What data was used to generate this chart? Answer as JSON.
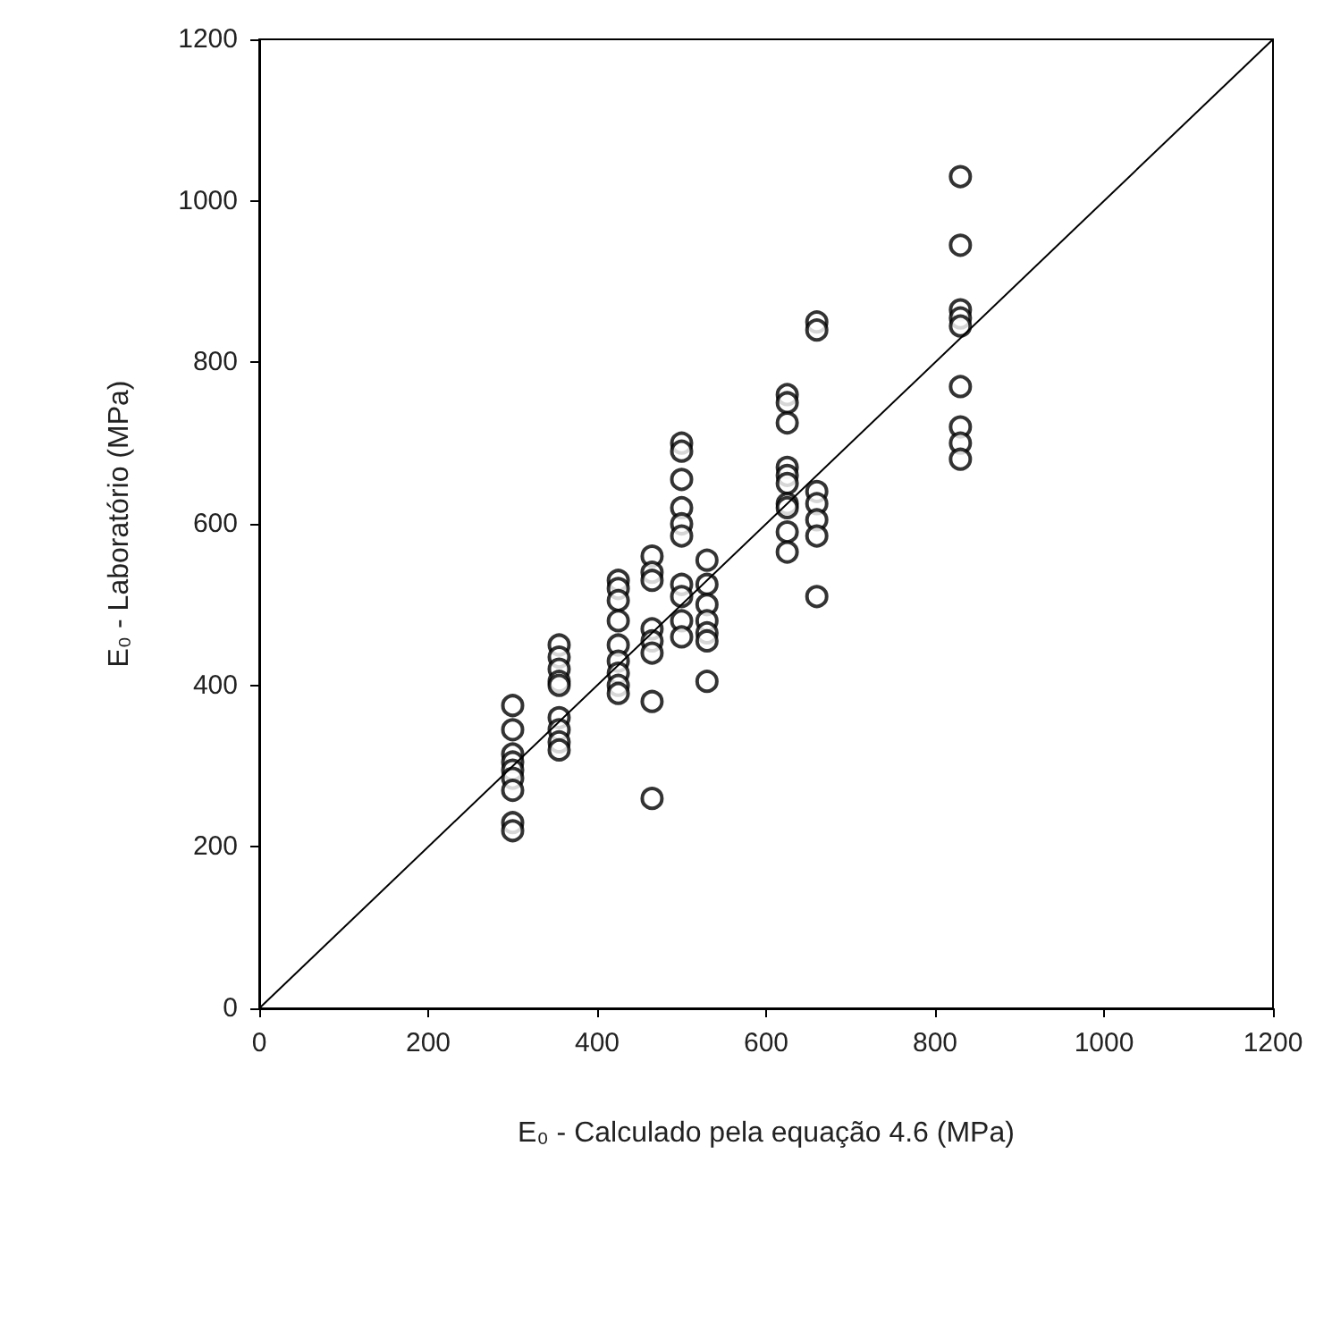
{
  "chart_data": {
    "type": "scatter",
    "xlabel": "E₀ - Calculado pela equação 4.6 (MPa)",
    "ylabel": "E₀ - Laboratório (MPa)",
    "xlim": [
      0,
      1200
    ],
    "ylim": [
      0,
      1200
    ],
    "xticks": [
      0,
      200,
      400,
      600,
      800,
      1000,
      1200
    ],
    "yticks": [
      0,
      200,
      400,
      600,
      800,
      1000,
      1200
    ],
    "grid": false,
    "series": [
      {
        "marker": "circle",
        "color": "#000000",
        "x": [
          300,
          300,
          300,
          300,
          300,
          300,
          300,
          300,
          300,
          355,
          355,
          355,
          355,
          355,
          355,
          355,
          355,
          355,
          425,
          425,
          425,
          425,
          425,
          425,
          425,
          425,
          425,
          465,
          465,
          465,
          465,
          465,
          465,
          465,
          465,
          500,
          500,
          500,
          500,
          500,
          500,
          500,
          500,
          500,
          500,
          530,
          530,
          530,
          530,
          530,
          530,
          530,
          625,
          625,
          625,
          625,
          625,
          625,
          625,
          625,
          625,
          625,
          660,
          660,
          660,
          660,
          660,
          660,
          660,
          830,
          830,
          830,
          830,
          830,
          830,
          830,
          830,
          830
        ],
        "values": [
          375,
          345,
          315,
          305,
          295,
          285,
          270,
          230,
          220,
          450,
          435,
          420,
          405,
          400,
          360,
          345,
          330,
          320,
          530,
          520,
          505,
          480,
          450,
          430,
          415,
          400,
          390,
          560,
          540,
          530,
          470,
          455,
          440,
          380,
          260,
          700,
          690,
          655,
          620,
          600,
          585,
          525,
          510,
          480,
          460,
          555,
          525,
          500,
          480,
          465,
          455,
          405,
          760,
          750,
          725,
          670,
          660,
          650,
          625,
          620,
          590,
          565,
          850,
          840,
          640,
          625,
          605,
          585,
          510,
          1030,
          945,
          865,
          855,
          845,
          770,
          720,
          700,
          680
        ]
      },
      {
        "type": "line",
        "marker": "none",
        "color": "#000000",
        "x": [
          0,
          1200
        ],
        "values": [
          0,
          1200
        ]
      }
    ]
  }
}
